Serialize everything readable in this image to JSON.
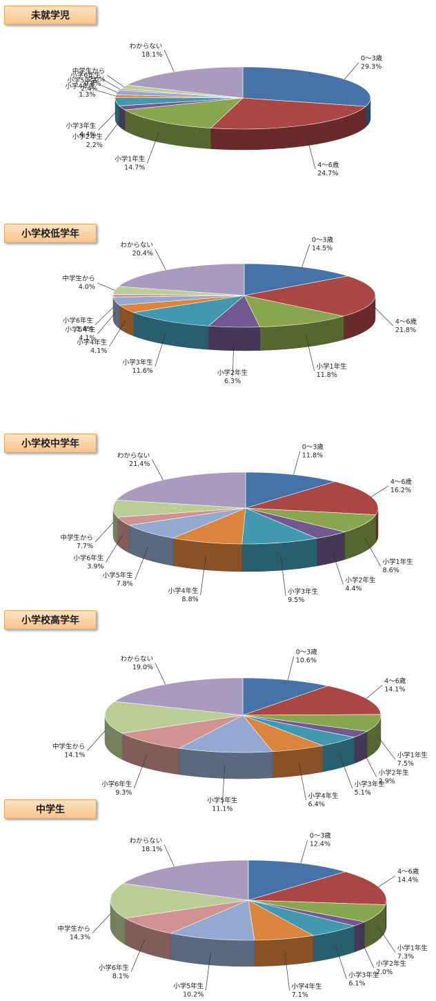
{
  "colors": [
    "#4572a7",
    "#aa4643",
    "#89a54e",
    "#71588f",
    "#4198af",
    "#db843d",
    "#93a9cf",
    "#d19392",
    "#b9cd96",
    "#a99bbd"
  ],
  "chart_data": [
    {
      "type": "pie",
      "title": "未就学児",
      "slices": [
        {
          "label": "0～3歳",
          "value": 29.3,
          "pct": "29.3%"
        },
        {
          "label": "4～6歳",
          "value": 24.7,
          "pct": "24.7%"
        },
        {
          "label": "小学1年生",
          "value": 14.7,
          "pct": "14.7%"
        },
        {
          "label": "小学2年生",
          "value": 2.2,
          "pct": "2.2%"
        },
        {
          "label": "小学3年生",
          "value": 4.4,
          "pct": "4.4%"
        },
        {
          "label": "小学4年生",
          "value": 1.3,
          "pct": "1.3%"
        },
        {
          "label": "小学5年生",
          "value": 2.4,
          "pct": "2.4%"
        },
        {
          "label": "小学6年生",
          "value": 0.8,
          "pct": "0.8%"
        },
        {
          "label": "中学生から",
          "value": 2.0,
          "pct": "2.0%"
        },
        {
          "label": "わからない",
          "value": 18.1,
          "pct": "18.1%"
        }
      ]
    },
    {
      "type": "pie",
      "title": "小学校低学年",
      "slices": [
        {
          "label": "0～3歳",
          "value": 14.5,
          "pct": "14.5%"
        },
        {
          "label": "4～6歳",
          "value": 21.8,
          "pct": "21.8%"
        },
        {
          "label": "小学1年生",
          "value": 11.8,
          "pct": "11.8%"
        },
        {
          "label": "小学2年生",
          "value": 6.3,
          "pct": "6.3%"
        },
        {
          "label": "小学3年生",
          "value": 11.6,
          "pct": "11.6%"
        },
        {
          "label": "小学4年生",
          "value": 4.1,
          "pct": "4.1%"
        },
        {
          "label": "小学5年生",
          "value": 4.1,
          "pct": "4.1%"
        },
        {
          "label": "小学6年生",
          "value": 1.4,
          "pct": "1.4%"
        },
        {
          "label": "中学生から",
          "value": 4.0,
          "pct": "4.0%"
        },
        {
          "label": "わからない",
          "value": 20.4,
          "pct": "20.4%"
        }
      ]
    },
    {
      "type": "pie",
      "title": "小学校中学年",
      "slices": [
        {
          "label": "0～3歳",
          "value": 11.8,
          "pct": "11.8%"
        },
        {
          "label": "4～6歳",
          "value": 16.2,
          "pct": "16.2%"
        },
        {
          "label": "小学1年生",
          "value": 8.6,
          "pct": "8.6%"
        },
        {
          "label": "小学2年生",
          "value": 4.4,
          "pct": "4.4%"
        },
        {
          "label": "小学3年生",
          "value": 9.5,
          "pct": "9.5%"
        },
        {
          "label": "小学4年生",
          "value": 8.8,
          "pct": "8.8%"
        },
        {
          "label": "小学5年生",
          "value": 7.8,
          "pct": "7.8%"
        },
        {
          "label": "小学6年生",
          "value": 3.9,
          "pct": "3.9%"
        },
        {
          "label": "中学生から",
          "value": 7.7,
          "pct": "7.7%"
        },
        {
          "label": "わからない",
          "value": 21.4,
          "pct": "21.4%"
        }
      ]
    },
    {
      "type": "pie",
      "title": "小学校高学年",
      "slices": [
        {
          "label": "0～3歳",
          "value": 10.6,
          "pct": "10.6%"
        },
        {
          "label": "4～6歳",
          "value": 14.1,
          "pct": "14.1%"
        },
        {
          "label": "小学1年生",
          "value": 7.5,
          "pct": "7.5%"
        },
        {
          "label": "小学2年生",
          "value": 2.9,
          "pct": "2.9%"
        },
        {
          "label": "小学3年生",
          "value": 5.1,
          "pct": "5.1%"
        },
        {
          "label": "小学4年生",
          "value": 6.4,
          "pct": "6.4%"
        },
        {
          "label": "小学5年生",
          "value": 11.1,
          "pct": "11.1%"
        },
        {
          "label": "小学6年生",
          "value": 9.3,
          "pct": "9.3%"
        },
        {
          "label": "中学生から",
          "value": 14.1,
          "pct": "14.1%"
        },
        {
          "label": "わからない",
          "value": 19.0,
          "pct": "19.0%"
        }
      ]
    },
    {
      "type": "pie",
      "title": "中学生",
      "slices": [
        {
          "label": "0～3歳",
          "value": 12.4,
          "pct": "12.4%"
        },
        {
          "label": "4～6歳",
          "value": 14.4,
          "pct": "14.4%"
        },
        {
          "label": "小学1年生",
          "value": 7.3,
          "pct": "7.3%"
        },
        {
          "label": "小学2年生",
          "value": 2.0,
          "pct": "2.0%"
        },
        {
          "label": "小学3年生",
          "value": 6.1,
          "pct": "6.1%"
        },
        {
          "label": "小学4年生",
          "value": 7.1,
          "pct": "7.1%"
        },
        {
          "label": "小学5年生",
          "value": 10.2,
          "pct": "10.2%"
        },
        {
          "label": "小学6年生",
          "value": 8.1,
          "pct": "8.1%"
        },
        {
          "label": "中学生から",
          "value": 14.3,
          "pct": "14.3%"
        },
        {
          "label": "わからない",
          "value": 18.1,
          "pct": "18.1%"
        }
      ]
    }
  ]
}
